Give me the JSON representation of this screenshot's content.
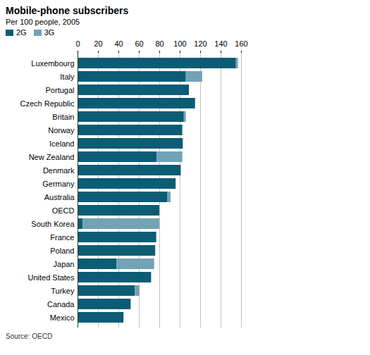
{
  "chart_data": {
    "type": "bar",
    "title": "Mobile-phone subscribers",
    "subtitle": "Per 100 people, 2005",
    "caption": "Source: OECD",
    "orientation": "horizontal",
    "stacked": true,
    "grid": true,
    "legend": "top-left",
    "categories": [
      "Luxembourg",
      "Italy",
      "Portugal",
      "Czech Republic",
      "Britain",
      "Norway",
      "Iceland",
      "New Zealand",
      "Denmark",
      "Germany",
      "Australia",
      "OECD",
      "South Korea",
      "France",
      "Poland",
      "Japan",
      "United States",
      "Turkey",
      "Canada",
      "Mexico"
    ],
    "series": [
      {
        "name": "2G",
        "color": "#0b5c74",
        "values": [
          155,
          106,
          109,
          115,
          104,
          102.5,
          103,
          77.5,
          101,
          96,
          88,
          80,
          5,
          77,
          76,
          38,
          72,
          56,
          52,
          45
        ]
      },
      {
        "name": "3G",
        "color": "#72a2b5",
        "values": [
          2,
          16,
          0,
          0,
          2,
          0,
          0,
          25,
          0,
          0,
          3,
          0,
          75,
          0,
          0,
          37,
          0,
          4.5,
          0,
          0
        ]
      }
    ],
    "xlim": [
      0,
      160
    ],
    "xticks": [
      0,
      20,
      40,
      60,
      80,
      100,
      120,
      140,
      160
    ]
  }
}
